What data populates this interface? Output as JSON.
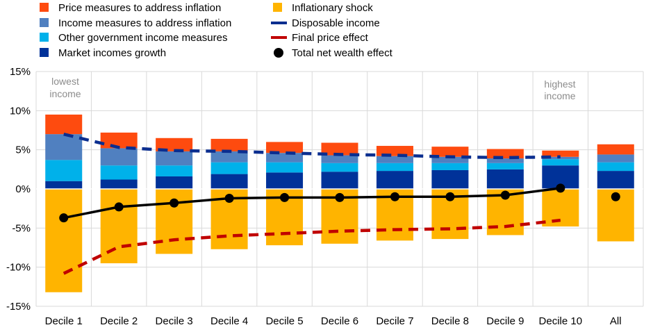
{
  "colors": {
    "price_measures": "#fe4b0f",
    "income_measures": "#5080c0",
    "other_gov": "#00b1ea",
    "market_incomes": "#003299",
    "inflationary_shock": "#ffb400",
    "disposable_income": "#0b2e8f",
    "final_price_effect": "#c00000",
    "total_net_wealth": "#000000"
  },
  "legend": [
    {
      "label": "Price measures to address inflation",
      "key": "price_measures",
      "kind": "square"
    },
    {
      "label": "Income measures to address inflation",
      "key": "income_measures",
      "kind": "square"
    },
    {
      "label": "Other government income measures",
      "key": "other_gov",
      "kind": "square"
    },
    {
      "label": "Market incomes growth",
      "key": "market_incomes",
      "kind": "square"
    },
    {
      "label": "Inflationary shock",
      "key": "inflationary_shock",
      "kind": "square"
    },
    {
      "label": "Disposable income",
      "key": "disposable_income",
      "kind": "dash"
    },
    {
      "label": "Final price effect",
      "key": "final_price_effect",
      "kind": "dash"
    },
    {
      "label": "Total net wealth effect",
      "key": "total_net_wealth",
      "kind": "dot"
    }
  ],
  "annotations": {
    "lowest": [
      "lowest",
      "income"
    ],
    "highest": [
      "highest",
      "income"
    ]
  },
  "chart_data": {
    "type": "bar",
    "categories": [
      "Decile  1",
      "Decile  2",
      "Decile  3",
      "Decile  4",
      "Decile  5",
      "Decile  6",
      "Decile  7",
      "Decile  8",
      "Decile  9",
      "Decile  10",
      "All"
    ],
    "ylim": [
      -15,
      15
    ],
    "yticks": [
      15,
      10,
      5,
      0,
      -5,
      -10,
      -15
    ],
    "ytick_labels": [
      "15%",
      "10%",
      "5%",
      "0%",
      "-5%",
      "-10%",
      "-15%"
    ],
    "series": [
      {
        "name": "Market incomes growth",
        "key": "market_incomes",
        "kind": "bar",
        "values": [
          1.0,
          1.2,
          1.6,
          1.9,
          2.1,
          2.2,
          2.3,
          2.4,
          2.5,
          3.0,
          2.3
        ]
      },
      {
        "name": "Other government income measures",
        "key": "other_gov",
        "kind": "bar",
        "values": [
          2.7,
          1.8,
          1.4,
          1.5,
          1.3,
          1.1,
          1.0,
          0.9,
          0.8,
          0.8,
          1.1
        ]
      },
      {
        "name": "Income measures to address inflation",
        "key": "income_measures",
        "kind": "bar",
        "values": [
          3.3,
          2.2,
          1.8,
          1.4,
          1.2,
          1.0,
          0.9,
          0.8,
          0.6,
          0.3,
          1.0
        ]
      },
      {
        "name": "Price measures to address inflation",
        "key": "price_measures",
        "kind": "bar",
        "values": [
          2.5,
          2.0,
          1.7,
          1.6,
          1.4,
          1.6,
          1.3,
          1.3,
          1.2,
          0.8,
          1.3
        ]
      },
      {
        "name": "Inflationary shock",
        "key": "inflationary_shock",
        "kind": "bar",
        "values": [
          -13.2,
          -9.5,
          -8.3,
          -7.7,
          -7.2,
          -7.0,
          -6.6,
          -6.4,
          -5.9,
          -4.8,
          -6.7
        ]
      },
      {
        "name": "Disposable income",
        "key": "disposable_income",
        "kind": "line",
        "values": [
          7.0,
          5.3,
          4.9,
          4.8,
          4.6,
          4.4,
          4.3,
          4.1,
          4.0,
          4.1,
          null
        ]
      },
      {
        "name": "Final price effect",
        "key": "final_price_effect",
        "kind": "line",
        "values": [
          -10.8,
          -7.4,
          -6.5,
          -6.0,
          -5.7,
          -5.4,
          -5.2,
          -5.1,
          -4.8,
          -4.0,
          null
        ]
      },
      {
        "name": "Total net wealth effect",
        "key": "total_net_wealth",
        "kind": "dots",
        "values": [
          -3.7,
          -2.3,
          -1.8,
          -1.2,
          -1.1,
          -1.1,
          -1.0,
          -1.0,
          -0.8,
          0.1,
          -1.0
        ]
      }
    ]
  }
}
